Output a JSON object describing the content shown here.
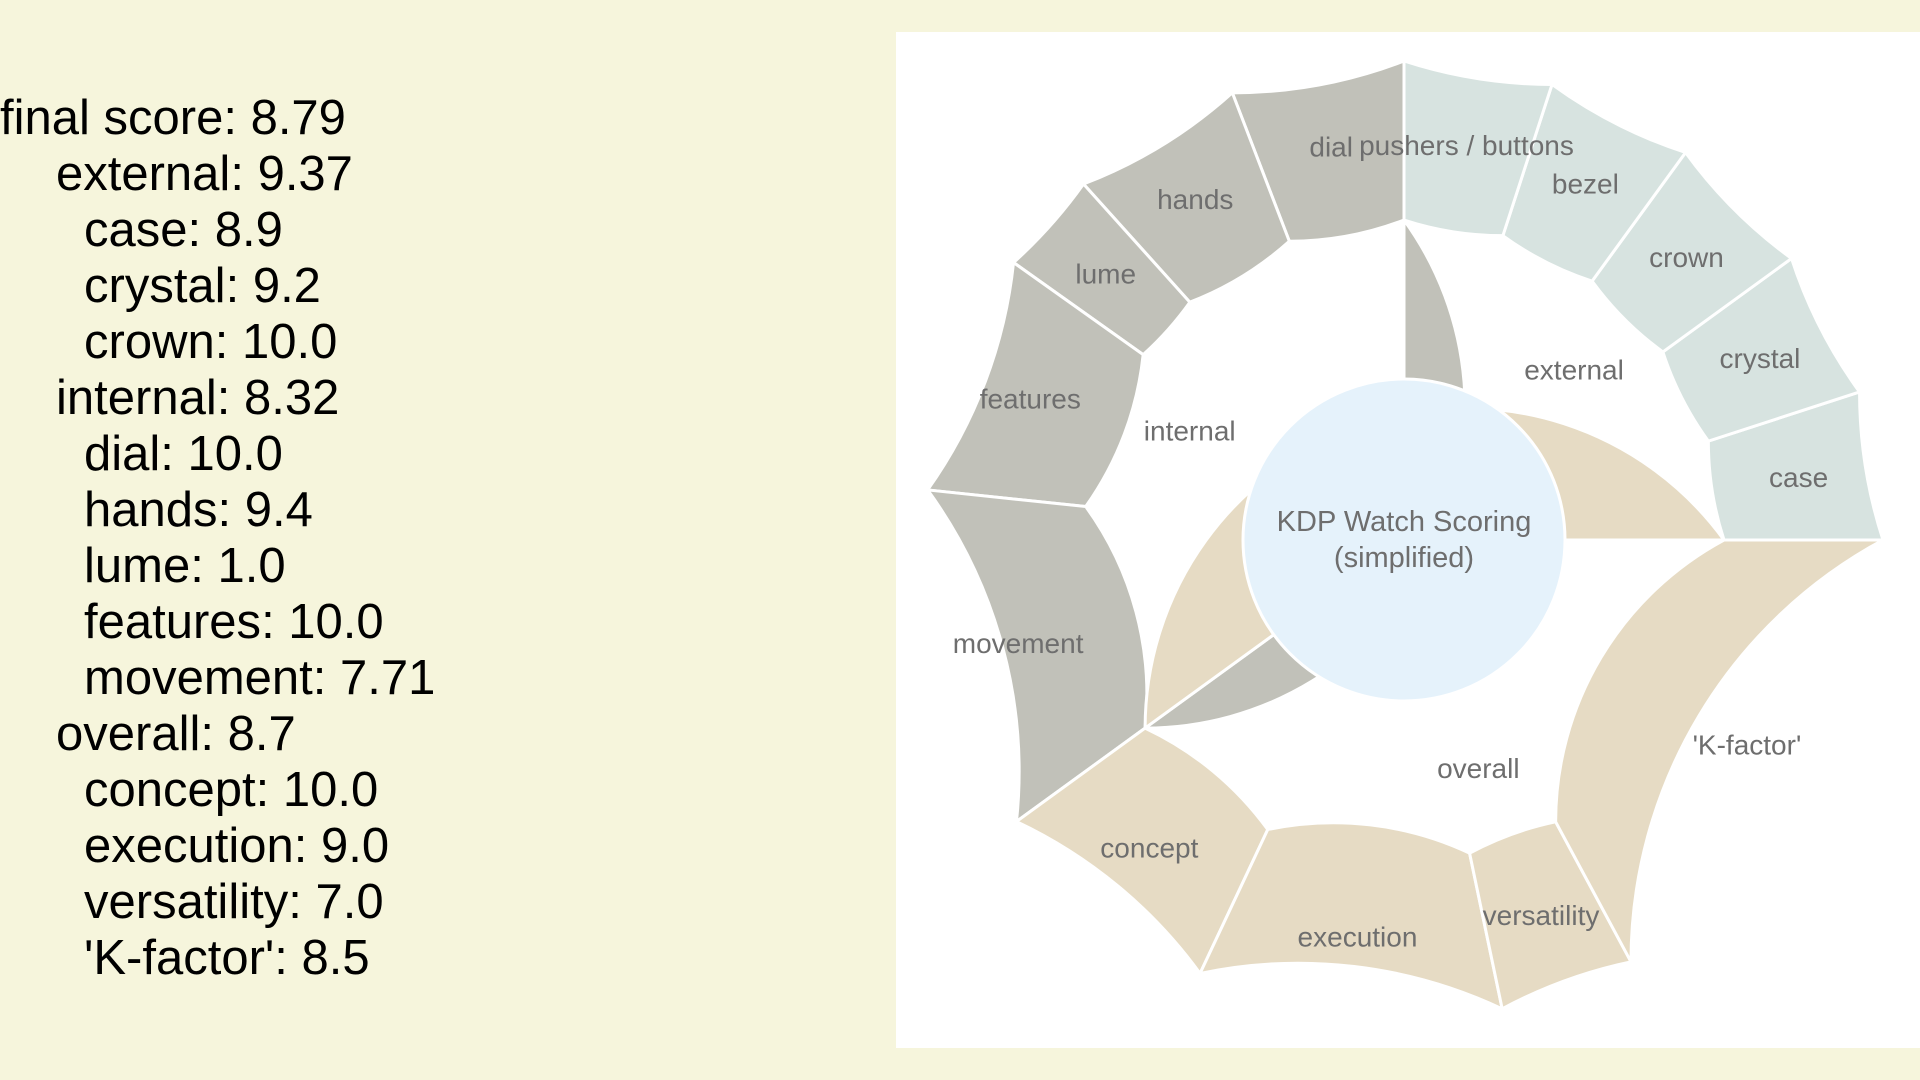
{
  "summary": {
    "final": {
      "label": "final score",
      "value": "8.79"
    },
    "groups": [
      {
        "label": "external",
        "value": "9.37",
        "items": [
          {
            "label": "case",
            "value": "8.9"
          },
          {
            "label": "crystal",
            "value": "9.2"
          },
          {
            "label": "crown",
            "value": "10.0"
          }
        ]
      },
      {
        "label": "internal",
        "value": "8.32",
        "items": [
          {
            "label": "dial",
            "value": "10.0"
          },
          {
            "label": "hands",
            "value": "9.4"
          },
          {
            "label": "lume",
            "value": "1.0"
          },
          {
            "label": "features",
            "value": "10.0"
          },
          {
            "label": "movement",
            "value": "7.71"
          }
        ]
      },
      {
        "label": "overall",
        "value": "8.7",
        "items": [
          {
            "label": "concept",
            "value": "10.0"
          },
          {
            "label": "execution",
            "value": "9.0"
          },
          {
            "label": "versatility",
            "value": "7.0"
          },
          {
            "label": "'K-factor'",
            "value": "8.5"
          }
        ]
      }
    ]
  },
  "chart_data": {
    "type": "sunburst",
    "center": {
      "lines": [
        "KDP Watch Scoring",
        "(simplified)"
      ],
      "color": "#e5f2fb"
    },
    "groups": [
      {
        "name": "external",
        "color": "#d7e3e0",
        "weight": 25,
        "children": [
          {
            "name": "case",
            "weight": 5
          },
          {
            "name": "crystal",
            "weight": 5
          },
          {
            "name": "crown",
            "weight": 5
          },
          {
            "name": "bezel",
            "weight": 5
          },
          {
            "name": "pushers / buttons",
            "weight": 5
          }
        ]
      },
      {
        "name": "internal",
        "color": "#c1c1b9",
        "weight": 35,
        "children": [
          {
            "name": "dial",
            "weight": 5
          },
          {
            "name": "hands",
            "weight": 5
          },
          {
            "name": "lume",
            "weight": 3
          },
          {
            "name": "features",
            "weight": 7
          },
          {
            "name": "movement",
            "weight": 10
          }
        ]
      },
      {
        "name": "overall",
        "color": "#e6dbc4",
        "weight": 40,
        "children": [
          {
            "name": "concept",
            "weight": 7
          },
          {
            "name": "execution",
            "weight": 9
          },
          {
            "name": "versatility",
            "weight": 4
          },
          {
            "name": "'K-factor'",
            "weight": 15
          }
        ]
      }
    ],
    "segment_border_color": "#ffffff"
  }
}
